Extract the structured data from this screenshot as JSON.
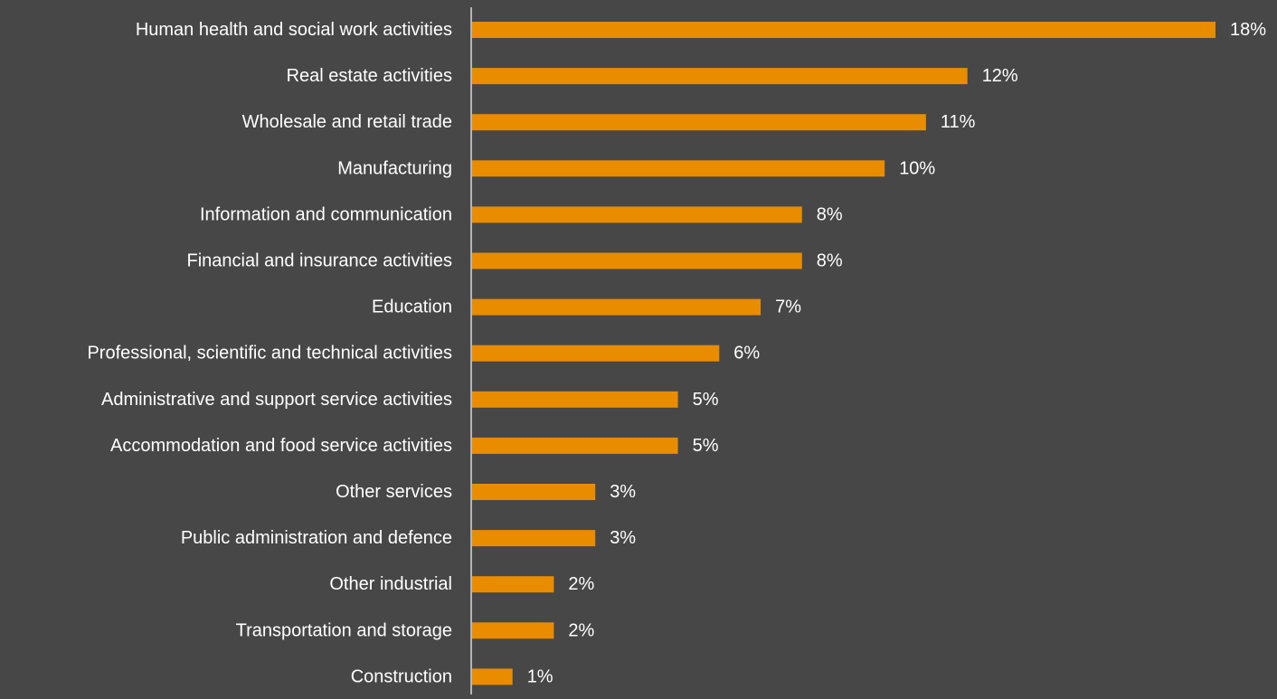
{
  "colors": {
    "background": "#474747",
    "bar": "#E98C00",
    "text": "#FFFFFF",
    "axis": "#D9D9D9"
  },
  "chart_data": {
    "type": "bar",
    "orientation": "horizontal",
    "title": "",
    "xlabel": "",
    "ylabel": "",
    "categories": [
      "Human health and social work activities",
      "Real estate activities",
      "Wholesale and retail trade",
      "Manufacturing",
      "Information and communication",
      "Financial and insurance activities",
      "Education",
      "Professional, scientific and technical activities",
      "Administrative and support service activities",
      "Accommodation and food service activities",
      "Other services",
      "Public administration and defence",
      "Other industrial",
      "Transportation and storage",
      "Construction"
    ],
    "values": [
      18,
      12,
      11,
      10,
      8,
      8,
      7,
      6,
      5,
      5,
      3,
      3,
      2,
      2,
      1
    ],
    "value_labels": [
      "18%",
      "12%",
      "11%",
      "10%",
      "8%",
      "8%",
      "7%",
      "6%",
      "5%",
      "5%",
      "3%",
      "3%",
      "2%",
      "2%",
      "1%"
    ],
    "unit": "%",
    "xlim": [
      0,
      18
    ],
    "grid": false,
    "legend": "none"
  }
}
